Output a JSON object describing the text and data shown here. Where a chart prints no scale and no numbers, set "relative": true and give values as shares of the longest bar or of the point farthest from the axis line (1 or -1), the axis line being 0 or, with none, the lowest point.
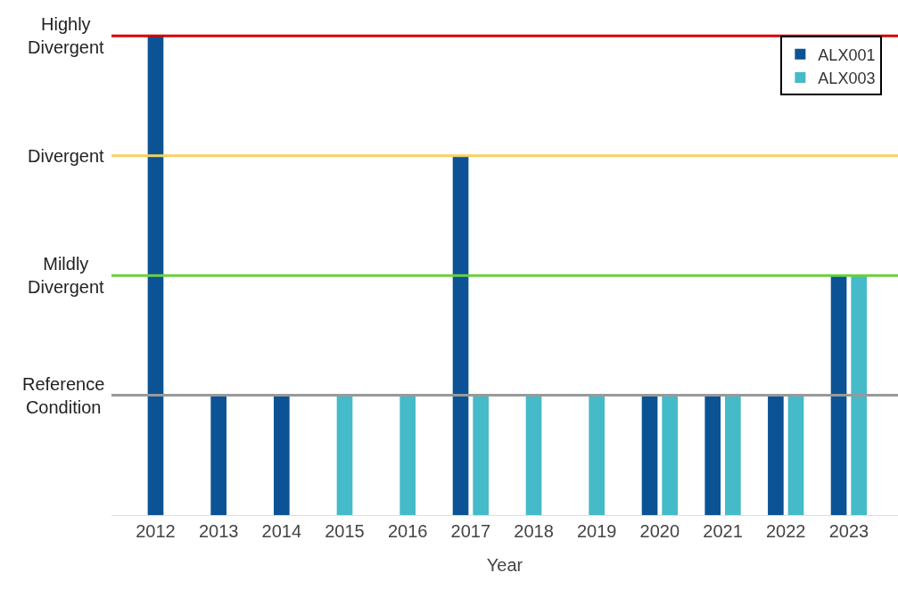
{
  "chart_data": {
    "type": "bar",
    "xlabel": "Year",
    "relative": true,
    "categories": [
      "2012",
      "2013",
      "2014",
      "2015",
      "2016",
      "2017",
      "2018",
      "2019",
      "2020",
      "2021",
      "2022",
      "2023"
    ],
    "series": [
      {
        "name": "ALX001",
        "color": "#0b5394",
        "values": [
          1,
          0.25,
          0.25,
          null,
          null,
          0.75,
          null,
          null,
          0.25,
          0.25,
          0.25,
          0.5
        ]
      },
      {
        "name": "ALX003",
        "color": "#45bac8",
        "values": [
          null,
          null,
          null,
          0.25,
          0.25,
          0.25,
          0.25,
          0.25,
          0.25,
          0.25,
          0.25,
          0.5
        ]
      }
    ],
    "ref_lines": [
      {
        "axis": "y",
        "value": 0.25,
        "label": "Reference Condition",
        "color": "#999999"
      },
      {
        "axis": "y",
        "value": 0.5,
        "label": "Mildly Divergent",
        "color": "#6ad13a"
      },
      {
        "axis": "y",
        "value": 0.75,
        "label": "Divergent",
        "color": "#f7d15c"
      },
      {
        "axis": "y",
        "value": 1,
        "label": "Highly Divergent",
        "color": "#d40000"
      }
    ],
    "legend": "top right"
  }
}
